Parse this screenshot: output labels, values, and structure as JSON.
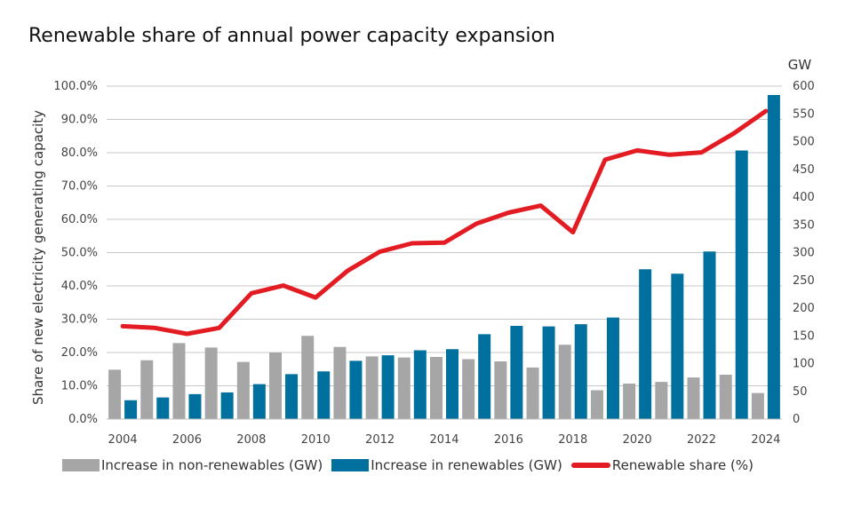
{
  "chart_data": {
    "type": "bar+line",
    "title": "Renewable share of annual power capacity expansion",
    "ylabel_left": "Share of new electricity generating capacity",
    "ylabel_right": "GW",
    "x": [
      2004,
      2005,
      2006,
      2007,
      2008,
      2009,
      2010,
      2011,
      2012,
      2013,
      2014,
      2015,
      2016,
      2017,
      2018,
      2019,
      2020,
      2021,
      2022,
      2023,
      2024
    ],
    "x_tick_labels": [
      "2004",
      "2006",
      "2008",
      "2010",
      "2012",
      "2014",
      "2016",
      "2018",
      "2020",
      "2022",
      "2024"
    ],
    "ylim_left": [
      0,
      100
    ],
    "yticks_left": [
      "0.0%",
      "10.0%",
      "20.0%",
      "30.0%",
      "40.0%",
      "50.0%",
      "60.0%",
      "70.0%",
      "80.0%",
      "90.0%",
      "100.0%"
    ],
    "ylim_right": [
      0,
      600
    ],
    "yticks_right": [
      "0",
      "50",
      "100",
      "150",
      "200",
      "250",
      "300",
      "350",
      "400",
      "450",
      "500",
      "550",
      "600"
    ],
    "grid": true,
    "legend_position": "bottom",
    "series": [
      {
        "name": "Increase in non-renewables (GW)",
        "type": "bar",
        "axis": "right",
        "color": "#a6a6a6",
        "values": [
          89,
          106,
          137,
          129,
          103,
          120,
          150,
          130,
          113,
          111,
          112,
          108,
          104,
          93,
          134,
          52,
          64,
          67,
          75,
          80,
          47
        ]
      },
      {
        "name": "Increase in renewables (GW)",
        "type": "bar",
        "axis": "right",
        "color": "#00709e",
        "values": [
          34,
          39,
          45,
          48,
          63,
          81,
          86,
          105,
          115,
          124,
          126,
          153,
          168,
          167,
          171,
          183,
          270,
          262,
          302,
          484,
          584
        ]
      },
      {
        "name": "Renewable share (%)",
        "type": "line",
        "axis": "left",
        "color": "#e31b23",
        "values": [
          27.9,
          27.4,
          25.6,
          27.4,
          37.8,
          40.1,
          36.5,
          44.6,
          50.3,
          52.8,
          53.0,
          58.7,
          62.0,
          64.1,
          56.1,
          77.9,
          80.7,
          79.4,
          80.1,
          85.8,
          92.5
        ]
      }
    ]
  }
}
